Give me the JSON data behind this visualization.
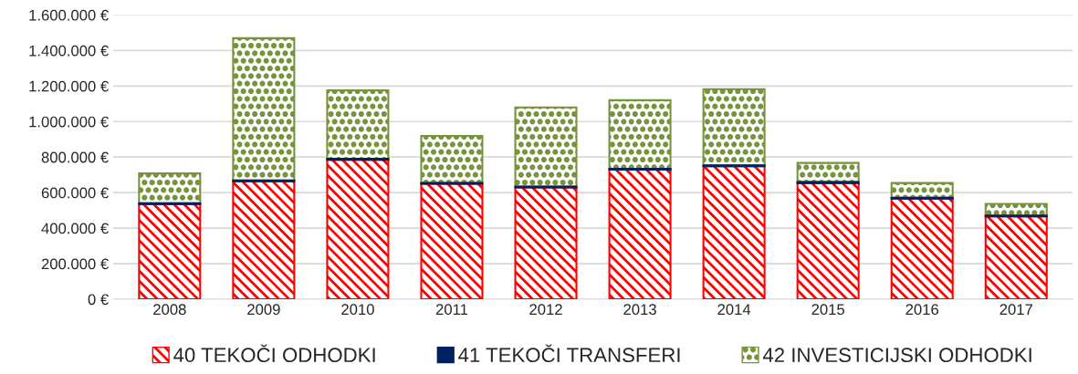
{
  "chart_data": {
    "type": "bar",
    "stacked": true,
    "categories": [
      "2008",
      "2009",
      "2010",
      "2011",
      "2012",
      "2013",
      "2014",
      "2015",
      "2016",
      "2017"
    ],
    "series": [
      {
        "name": "40 TEKOČI ODHODKI",
        "color": "#ff0000",
        "values": [
          535000,
          664000,
          785000,
          650000,
          629000,
          729000,
          748000,
          654000,
          566000,
          466000
        ]
      },
      {
        "name": "41 TEKOČI TRANSFERI",
        "color": "#002060",
        "values": [
          5000,
          5000,
          5000,
          5000,
          5000,
          5000,
          5000,
          5000,
          5000,
          5000
        ]
      },
      {
        "name": "42 INVESTICIJSKI ODHODKI",
        "color": "#77933c",
        "values": [
          168000,
          800000,
          386000,
          264000,
          446000,
          386000,
          429000,
          108000,
          83000,
          66000
        ]
      }
    ],
    "ylim": [
      0,
      1600000
    ],
    "yticks": [
      {
        "value": 0,
        "label": "0 €"
      },
      {
        "value": 200000,
        "label": "200.000 €"
      },
      {
        "value": 400000,
        "label": "400.000 €"
      },
      {
        "value": 600000,
        "label": "600.000 €"
      },
      {
        "value": 800000,
        "label": "800.000 €"
      },
      {
        "value": 1000000,
        "label": "1.000.000 €"
      },
      {
        "value": 1200000,
        "label": "1.200.000 €"
      },
      {
        "value": 1400000,
        "label": "1.400.000 €"
      },
      {
        "value": 1600000,
        "label": "1.600.000 €"
      }
    ],
    "grid": "y",
    "legend": "bottom"
  }
}
